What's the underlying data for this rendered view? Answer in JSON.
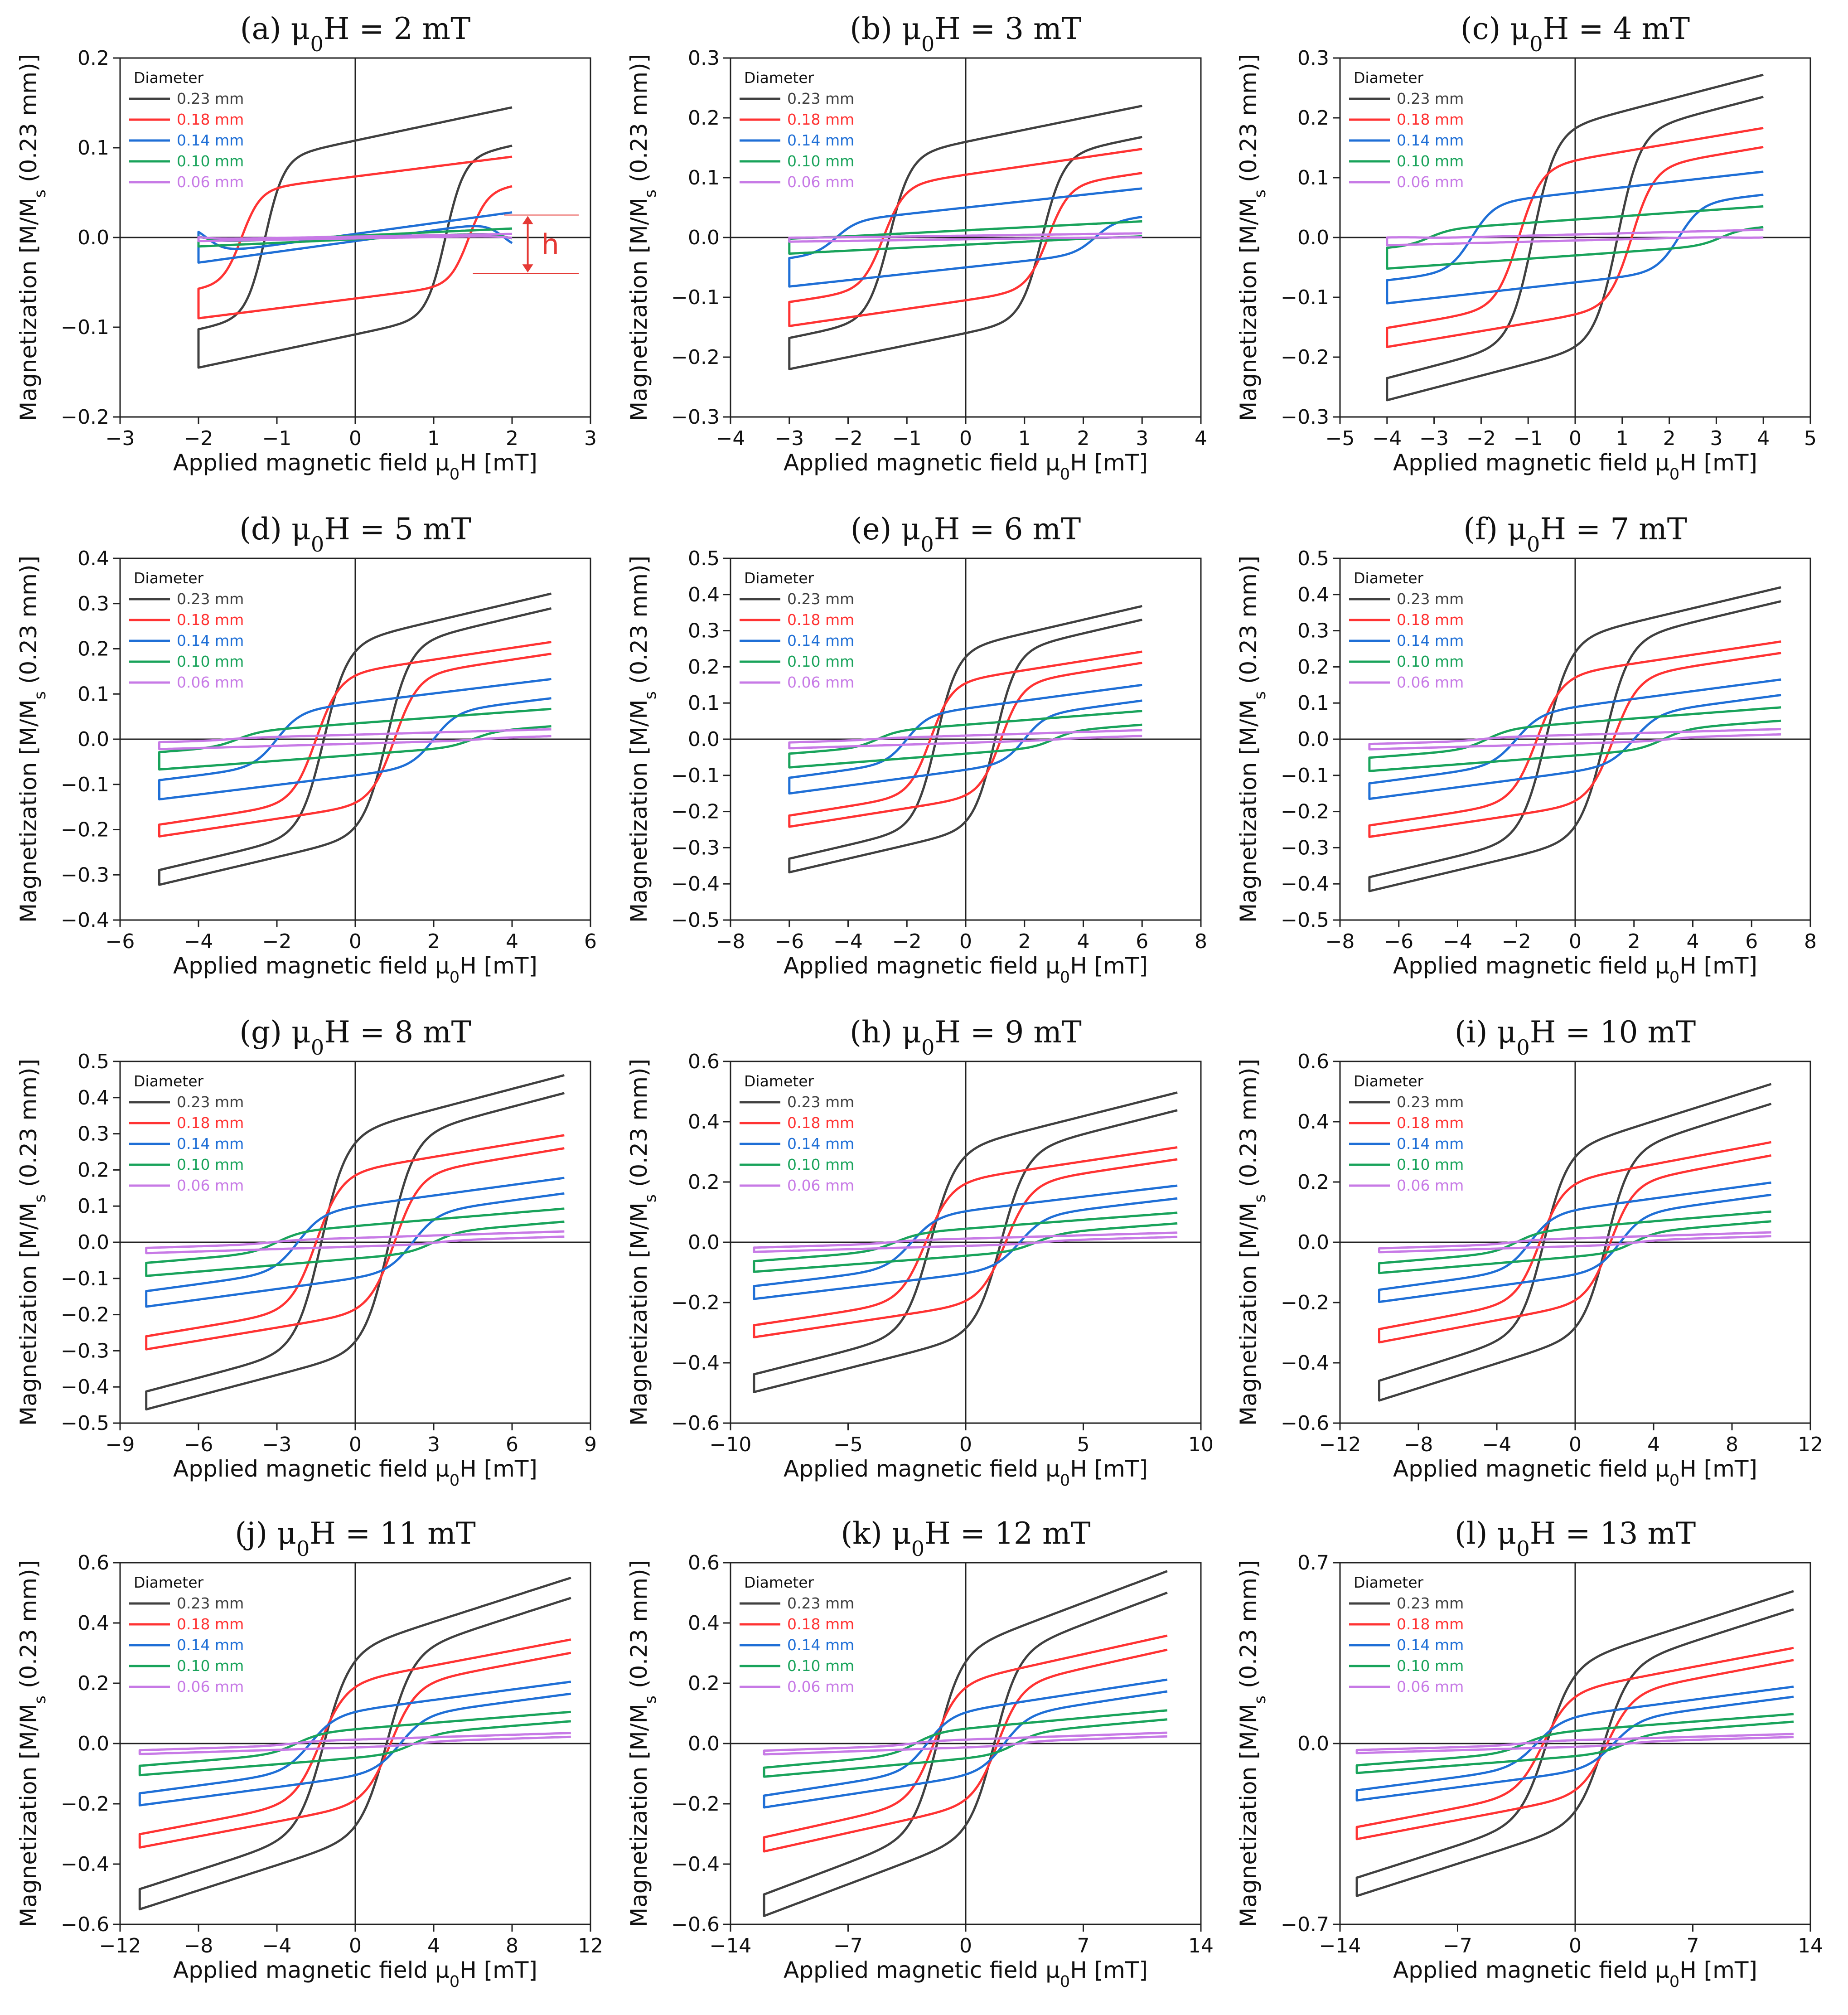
{
  "diameter_legend_title": "Diameter",
  "y_axis_label": "Magnetization [M/Ms (0.23 mm)]",
  "x_axis_label": "Applied magnetic field μ0H [mT]",
  "series_styles": [
    {
      "name": "0.23 mm",
      "color": "#404040"
    },
    {
      "name": "0.18 mm",
      "color": "#ff3333"
    },
    {
      "name": "0.14 mm",
      "color": "#1f6fd6"
    },
    {
      "name": "0.10 mm",
      "color": "#19a35b"
    },
    {
      "name": "0.06 mm",
      "color": "#c77ae6"
    }
  ],
  "chart_data": [
    {
      "type": "line",
      "panel": "(a)",
      "title": "(a) μ0H = 2 mT",
      "field_amplitude": 2,
      "xlim": [
        -3,
        3
      ],
      "ylim": [
        -0.2,
        0.2
      ],
      "xticks": [
        -3,
        -2,
        -1,
        0,
        1,
        2,
        3
      ],
      "xtick_labels": [
        "−3",
        "−2",
        "−1",
        "0",
        "1",
        "2",
        "3"
      ],
      "yticks": [
        -0.2,
        -0.1,
        0.0,
        0.1,
        0.2
      ],
      "ytick_labels": [
        "−0.2",
        "−0.1",
        "0.0",
        "0.1",
        "0.2"
      ],
      "annotation": "h",
      "series": [
        {
          "name": "0.23 mm",
          "Ms": 0.145,
          "Mr": 0.108,
          "Hc": 1.15
        },
        {
          "name": "0.18 mm",
          "Ms": 0.09,
          "Mr": 0.068,
          "Hc": 1.45
        },
        {
          "name": "0.14 mm",
          "Ms": 0.028,
          "Mr": 0.004,
          "Hc": 1.9
        },
        {
          "name": "0.10 mm",
          "Ms": 0.01,
          "Mr": 0.002,
          "Hc": 1.95
        },
        {
          "name": "0.06 mm",
          "Ms": 0.004,
          "Mr": 0.001,
          "Hc": 1.95
        }
      ]
    },
    {
      "type": "line",
      "panel": "(b)",
      "title": "(b) μ0H = 3 mT",
      "field_amplitude": 3,
      "xlim": [
        -4,
        4
      ],
      "ylim": [
        -0.3,
        0.3
      ],
      "xticks": [
        -4,
        -3,
        -2,
        -1,
        0,
        1,
        2,
        3,
        4
      ],
      "xtick_labels": [
        "−4",
        "−3",
        "−2",
        "−1",
        "0",
        "1",
        "2",
        "3",
        "4"
      ],
      "yticks": [
        -0.3,
        -0.2,
        -0.1,
        0.0,
        0.1,
        0.2,
        0.3
      ],
      "ytick_labels": [
        "−0.3",
        "−0.2",
        "−0.1",
        "0.0",
        "0.1",
        "0.2",
        "0.3"
      ],
      "series": [
        {
          "name": "0.23 mm",
          "Ms": 0.22,
          "Mr": 0.16,
          "Hc": 1.3
        },
        {
          "name": "0.18 mm",
          "Ms": 0.148,
          "Mr": 0.105,
          "Hc": 1.4
        },
        {
          "name": "0.14 mm",
          "Ms": 0.082,
          "Mr": 0.05,
          "Hc": 2.2
        },
        {
          "name": "0.10 mm",
          "Ms": 0.027,
          "Mr": 0.012,
          "Hc": 2.5
        },
        {
          "name": "0.06 mm",
          "Ms": 0.007,
          "Mr": 0.003,
          "Hc": 2.5
        }
      ]
    },
    {
      "type": "line",
      "panel": "(c)",
      "title": "(c) μ0H = 4 mT",
      "field_amplitude": 4,
      "xlim": [
        -5,
        5
      ],
      "ylim": [
        -0.3,
        0.3
      ],
      "xticks": [
        -5,
        -4,
        -3,
        -2,
        -1,
        0,
        1,
        2,
        3,
        4,
        5
      ],
      "xtick_labels": [
        "−5",
        "−4",
        "−3",
        "−2",
        "−1",
        "0",
        "1",
        "2",
        "3",
        "4",
        "5"
      ],
      "yticks": [
        -0.3,
        -0.2,
        -0.1,
        0.0,
        0.1,
        0.2,
        0.3
      ],
      "ytick_labels": [
        "−0.3",
        "−0.2",
        "−0.1",
        "0.0",
        "0.1",
        "0.2",
        "0.3"
      ],
      "series": [
        {
          "name": "0.23 mm",
          "Ms": 0.272,
          "Mr": 0.19,
          "Hc": 0.9
        },
        {
          "name": "0.18 mm",
          "Ms": 0.183,
          "Mr": 0.13,
          "Hc": 1.2
        },
        {
          "name": "0.14 mm",
          "Ms": 0.11,
          "Mr": 0.075,
          "Hc": 2.2
        },
        {
          "name": "0.10 mm",
          "Ms": 0.052,
          "Mr": 0.03,
          "Hc": 3.1
        },
        {
          "name": "0.06 mm",
          "Ms": 0.013,
          "Mr": 0.005,
          "Hc": 3.3
        }
      ]
    },
    {
      "type": "line",
      "panel": "(d)",
      "title": "(d) μ0H = 5 mT",
      "field_amplitude": 5,
      "xlim": [
        -6,
        6
      ],
      "ylim": [
        -0.4,
        0.4
      ],
      "xticks": [
        -6,
        -4,
        -2,
        0,
        2,
        4,
        6
      ],
      "xtick_labels": [
        "−6",
        "−4",
        "−2",
        "0",
        "2",
        "4",
        "6"
      ],
      "yticks": [
        -0.4,
        -0.3,
        -0.2,
        -0.1,
        0.0,
        0.1,
        0.2,
        0.3,
        0.4
      ],
      "ytick_labels": [
        "−0.4",
        "−0.3",
        "−0.2",
        "−0.1",
        "0.0",
        "0.1",
        "0.2",
        "0.3",
        "0.4"
      ],
      "series": [
        {
          "name": "0.23 mm",
          "Ms": 0.322,
          "Mr": 0.22,
          "Hc": 0.8
        },
        {
          "name": "0.18 mm",
          "Ms": 0.215,
          "Mr": 0.15,
          "Hc": 1.0
        },
        {
          "name": "0.14 mm",
          "Ms": 0.133,
          "Mr": 0.08,
          "Hc": 2.0
        },
        {
          "name": "0.10 mm",
          "Ms": 0.067,
          "Mr": 0.035,
          "Hc": 3.0
        },
        {
          "name": "0.06 mm",
          "Ms": 0.022,
          "Mr": 0.01,
          "Hc": 3.2
        }
      ]
    },
    {
      "type": "line",
      "panel": "(e)",
      "title": "(e) μ0H = 6 mT",
      "field_amplitude": 6,
      "xlim": [
        -8,
        8
      ],
      "ylim": [
        -0.5,
        0.5
      ],
      "xticks": [
        -8,
        -6,
        -4,
        -2,
        0,
        2,
        4,
        6,
        8
      ],
      "xtick_labels": [
        "−8",
        "−6",
        "−4",
        "−2",
        "0",
        "2",
        "4",
        "6",
        "8"
      ],
      "yticks": [
        -0.5,
        -0.4,
        -0.3,
        -0.2,
        -0.1,
        0.0,
        0.1,
        0.2,
        0.3,
        0.4,
        0.5
      ],
      "ytick_labels": [
        "−0.5",
        "−0.4",
        "−0.3",
        "−0.2",
        "−0.1",
        "0.0",
        "0.1",
        "0.2",
        "0.3",
        "0.4",
        "0.5"
      ],
      "series": [
        {
          "name": "0.23 mm",
          "Ms": 0.368,
          "Mr": 0.255,
          "Hc": 1.0
        },
        {
          "name": "0.18 mm",
          "Ms": 0.242,
          "Mr": 0.165,
          "Hc": 1.2
        },
        {
          "name": "0.14 mm",
          "Ms": 0.15,
          "Mr": 0.085,
          "Hc": 2.0
        },
        {
          "name": "0.10 mm",
          "Ms": 0.078,
          "Mr": 0.04,
          "Hc": 3.0
        },
        {
          "name": "0.06 mm",
          "Ms": 0.025,
          "Mr": 0.01,
          "Hc": 3.2
        }
      ]
    },
    {
      "type": "line",
      "panel": "(f)",
      "title": "(f) μ0H = 7 mT",
      "field_amplitude": 7,
      "xlim": [
        -8,
        8
      ],
      "ylim": [
        -0.5,
        0.5
      ],
      "xticks": [
        -8,
        -6,
        -4,
        -2,
        0,
        2,
        4,
        6,
        8
      ],
      "xtick_labels": [
        "−8",
        "−6",
        "−4",
        "−2",
        "0",
        "2",
        "4",
        "6",
        "8"
      ],
      "yticks": [
        -0.5,
        -0.4,
        -0.3,
        -0.2,
        -0.1,
        0.0,
        0.1,
        0.2,
        0.3,
        0.4,
        0.5
      ],
      "ytick_labels": [
        "−0.5",
        "−0.4",
        "−0.3",
        "−0.2",
        "−0.1",
        "0.0",
        "0.1",
        "0.2",
        "0.3",
        "0.4",
        "0.5"
      ],
      "series": [
        {
          "name": "0.23 mm",
          "Ms": 0.42,
          "Mr": 0.285,
          "Hc": 1.0
        },
        {
          "name": "0.18 mm",
          "Ms": 0.27,
          "Mr": 0.185,
          "Hc": 1.3
        },
        {
          "name": "0.14 mm",
          "Ms": 0.165,
          "Mr": 0.09,
          "Hc": 2.0
        },
        {
          "name": "0.10 mm",
          "Ms": 0.088,
          "Mr": 0.045,
          "Hc": 3.0
        },
        {
          "name": "0.06 mm",
          "Ms": 0.028,
          "Mr": 0.012,
          "Hc": 3.2
        }
      ]
    },
    {
      "type": "line",
      "panel": "(g)",
      "title": "(g) μ0H = 8 mT",
      "field_amplitude": 8,
      "xlim": [
        -9,
        9
      ],
      "ylim": [
        -0.5,
        0.5
      ],
      "xticks": [
        -9,
        -6,
        -3,
        0,
        3,
        6,
        9
      ],
      "xtick_labels": [
        "−9",
        "−6",
        "−3",
        "0",
        "3",
        "6",
        "9"
      ],
      "yticks": [
        -0.5,
        -0.4,
        -0.3,
        -0.2,
        -0.1,
        0.0,
        0.1,
        0.2,
        0.3,
        0.4,
        0.5
      ],
      "ytick_labels": [
        "−0.5",
        "−0.4",
        "−0.3",
        "−0.2",
        "−0.1",
        "0.0",
        "0.1",
        "0.2",
        "0.3",
        "0.4",
        "0.5"
      ],
      "series": [
        {
          "name": "0.23 mm",
          "Ms": 0.462,
          "Mr": 0.31,
          "Hc": 1.3
        },
        {
          "name": "0.18 mm",
          "Ms": 0.296,
          "Mr": 0.2,
          "Hc": 1.5
        },
        {
          "name": "0.14 mm",
          "Ms": 0.178,
          "Mr": 0.1,
          "Hc": 2.2
        },
        {
          "name": "0.10 mm",
          "Ms": 0.093,
          "Mr": 0.045,
          "Hc": 3.0
        },
        {
          "name": "0.06 mm",
          "Ms": 0.03,
          "Mr": 0.012,
          "Hc": 3.2
        }
      ]
    },
    {
      "type": "line",
      "panel": "(h)",
      "title": "(h) μ0H = 9 mT",
      "field_amplitude": 9,
      "xlim": [
        -10,
        10
      ],
      "ylim": [
        -0.6,
        0.6
      ],
      "xticks": [
        -10,
        -5,
        0,
        5,
        10
      ],
      "xtick_labels": [
        "−10",
        "−5",
        "0",
        "5",
        "10"
      ],
      "yticks": [
        -0.6,
        -0.4,
        -0.2,
        0.0,
        0.2,
        0.4,
        0.6
      ],
      "ytick_labels": [
        "−0.6",
        "−0.4",
        "−0.2",
        "0.0",
        "0.2",
        "0.4",
        "0.6"
      ],
      "series": [
        {
          "name": "0.23 mm",
          "Ms": 0.497,
          "Mr": 0.32,
          "Hc": 1.5
        },
        {
          "name": "0.18 mm",
          "Ms": 0.315,
          "Mr": 0.21,
          "Hc": 1.7
        },
        {
          "name": "0.14 mm",
          "Ms": 0.188,
          "Mr": 0.105,
          "Hc": 2.3
        },
        {
          "name": "0.10 mm",
          "Ms": 0.098,
          "Mr": 0.045,
          "Hc": 3.0
        },
        {
          "name": "0.06 mm",
          "Ms": 0.032,
          "Mr": 0.012,
          "Hc": 3.2
        }
      ]
    },
    {
      "type": "line",
      "panel": "(i)",
      "title": "(i) μ0H = 10 mT",
      "field_amplitude": 10,
      "xlim": [
        -12,
        12
      ],
      "ylim": [
        -0.6,
        0.6
      ],
      "xticks": [
        -12,
        -8,
        -4,
        0,
        4,
        8,
        12
      ],
      "xtick_labels": [
        "−12",
        "−8",
        "−4",
        "0",
        "4",
        "8",
        "12"
      ],
      "yticks": [
        -0.6,
        -0.4,
        -0.2,
        0.0,
        0.2,
        0.4,
        0.6
      ],
      "ytick_labels": [
        "−0.6",
        "−0.4",
        "−0.2",
        "0.0",
        "0.2",
        "0.4",
        "0.6"
      ],
      "series": [
        {
          "name": "0.23 mm",
          "Ms": 0.525,
          "Mr": 0.32,
          "Hc": 1.6
        },
        {
          "name": "0.18 mm",
          "Ms": 0.332,
          "Mr": 0.21,
          "Hc": 1.8
        },
        {
          "name": "0.14 mm",
          "Ms": 0.198,
          "Mr": 0.11,
          "Hc": 2.3
        },
        {
          "name": "0.10 mm",
          "Ms": 0.102,
          "Mr": 0.048,
          "Hc": 3.0
        },
        {
          "name": "0.06 mm",
          "Ms": 0.033,
          "Mr": 0.013,
          "Hc": 3.2
        }
      ]
    },
    {
      "type": "line",
      "panel": "(j)",
      "title": "(j) μ0H = 11 mT",
      "field_amplitude": 11,
      "xlim": [
        -12,
        12
      ],
      "ylim": [
        -0.6,
        0.6
      ],
      "xticks": [
        -12,
        -8,
        -4,
        0,
        4,
        8,
        12
      ],
      "xtick_labels": [
        "−12",
        "−8",
        "−4",
        "0",
        "4",
        "8",
        "12"
      ],
      "yticks": [
        -0.6,
        -0.4,
        -0.2,
        0.0,
        0.2,
        0.4,
        0.6
      ],
      "ytick_labels": [
        "−0.6",
        "−0.4",
        "−0.2",
        "0.0",
        "0.2",
        "0.4",
        "0.6"
      ],
      "series": [
        {
          "name": "0.23 mm",
          "Ms": 0.55,
          "Mr": 0.32,
          "Hc": 1.6
        },
        {
          "name": "0.18 mm",
          "Ms": 0.345,
          "Mr": 0.21,
          "Hc": 1.8
        },
        {
          "name": "0.14 mm",
          "Ms": 0.205,
          "Mr": 0.11,
          "Hc": 2.3
        },
        {
          "name": "0.10 mm",
          "Ms": 0.105,
          "Mr": 0.048,
          "Hc": 3.0
        },
        {
          "name": "0.06 mm",
          "Ms": 0.035,
          "Mr": 0.013,
          "Hc": 3.2
        }
      ]
    },
    {
      "type": "line",
      "panel": "(k)",
      "title": "(k) μ0H = 12 mT",
      "field_amplitude": 12,
      "xlim": [
        -14,
        14
      ],
      "ylim": [
        -0.6,
        0.6
      ],
      "xticks": [
        -14,
        -7,
        0,
        7,
        14
      ],
      "xtick_labels": [
        "−14",
        "−7",
        "0",
        "7",
        "14"
      ],
      "yticks": [
        -0.6,
        -0.4,
        -0.2,
        0.0,
        0.2,
        0.4,
        0.6
      ],
      "ytick_labels": [
        "−0.6",
        "−0.4",
        "−0.2",
        "0.0",
        "0.2",
        "0.4",
        "0.6"
      ],
      "series": [
        {
          "name": "0.23 mm",
          "Ms": 0.572,
          "Mr": 0.32,
          "Hc": 1.7
        },
        {
          "name": "0.18 mm",
          "Ms": 0.358,
          "Mr": 0.21,
          "Hc": 1.9
        },
        {
          "name": "0.14 mm",
          "Ms": 0.212,
          "Mr": 0.11,
          "Hc": 2.3
        },
        {
          "name": "0.10 mm",
          "Ms": 0.11,
          "Mr": 0.05,
          "Hc": 3.0
        },
        {
          "name": "0.06 mm",
          "Ms": 0.036,
          "Mr": 0.013,
          "Hc": 3.2
        }
      ]
    },
    {
      "type": "line",
      "panel": "(l)",
      "title": "(l) μ0H = 13 mT",
      "field_amplitude": 13,
      "xlim": [
        -14,
        14
      ],
      "ylim": [
        -0.7,
        0.7
      ],
      "xticks": [
        -14,
        -7,
        0,
        7,
        14
      ],
      "xtick_labels": [
        "−14",
        "−7",
        "0",
        "7",
        "14"
      ],
      "yticks": [
        -0.7,
        0.0,
        0.7
      ],
      "ytick_labels": [
        "−0.7",
        "0.0",
        "0.7"
      ],
      "series": [
        {
          "name": "0.23 mm",
          "Ms": 0.59,
          "Mr": 0.32,
          "Hc": 1.7
        },
        {
          "name": "0.18 mm",
          "Ms": 0.37,
          "Mr": 0.21,
          "Hc": 1.9
        },
        {
          "name": "0.14 mm",
          "Ms": 0.22,
          "Mr": 0.11,
          "Hc": 2.3
        },
        {
          "name": "0.10 mm",
          "Ms": 0.114,
          "Mr": 0.05,
          "Hc": 3.0
        },
        {
          "name": "0.06 mm",
          "Ms": 0.037,
          "Mr": 0.013,
          "Hc": 3.2
        }
      ]
    }
  ]
}
